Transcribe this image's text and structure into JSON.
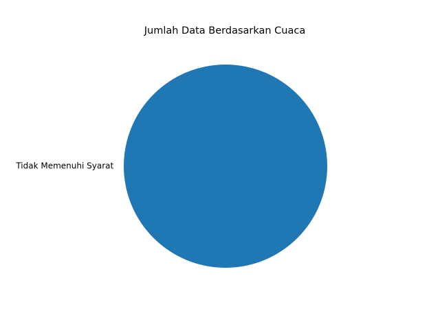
{
  "chart_data": {
    "type": "pie",
    "title": "Jumlah Data Berdasarkan Cuaca",
    "slices": [
      {
        "label": "Tidak Memenuhi Syarat",
        "value": 1,
        "color": "#1f77b4"
      }
    ],
    "legend": "none"
  }
}
